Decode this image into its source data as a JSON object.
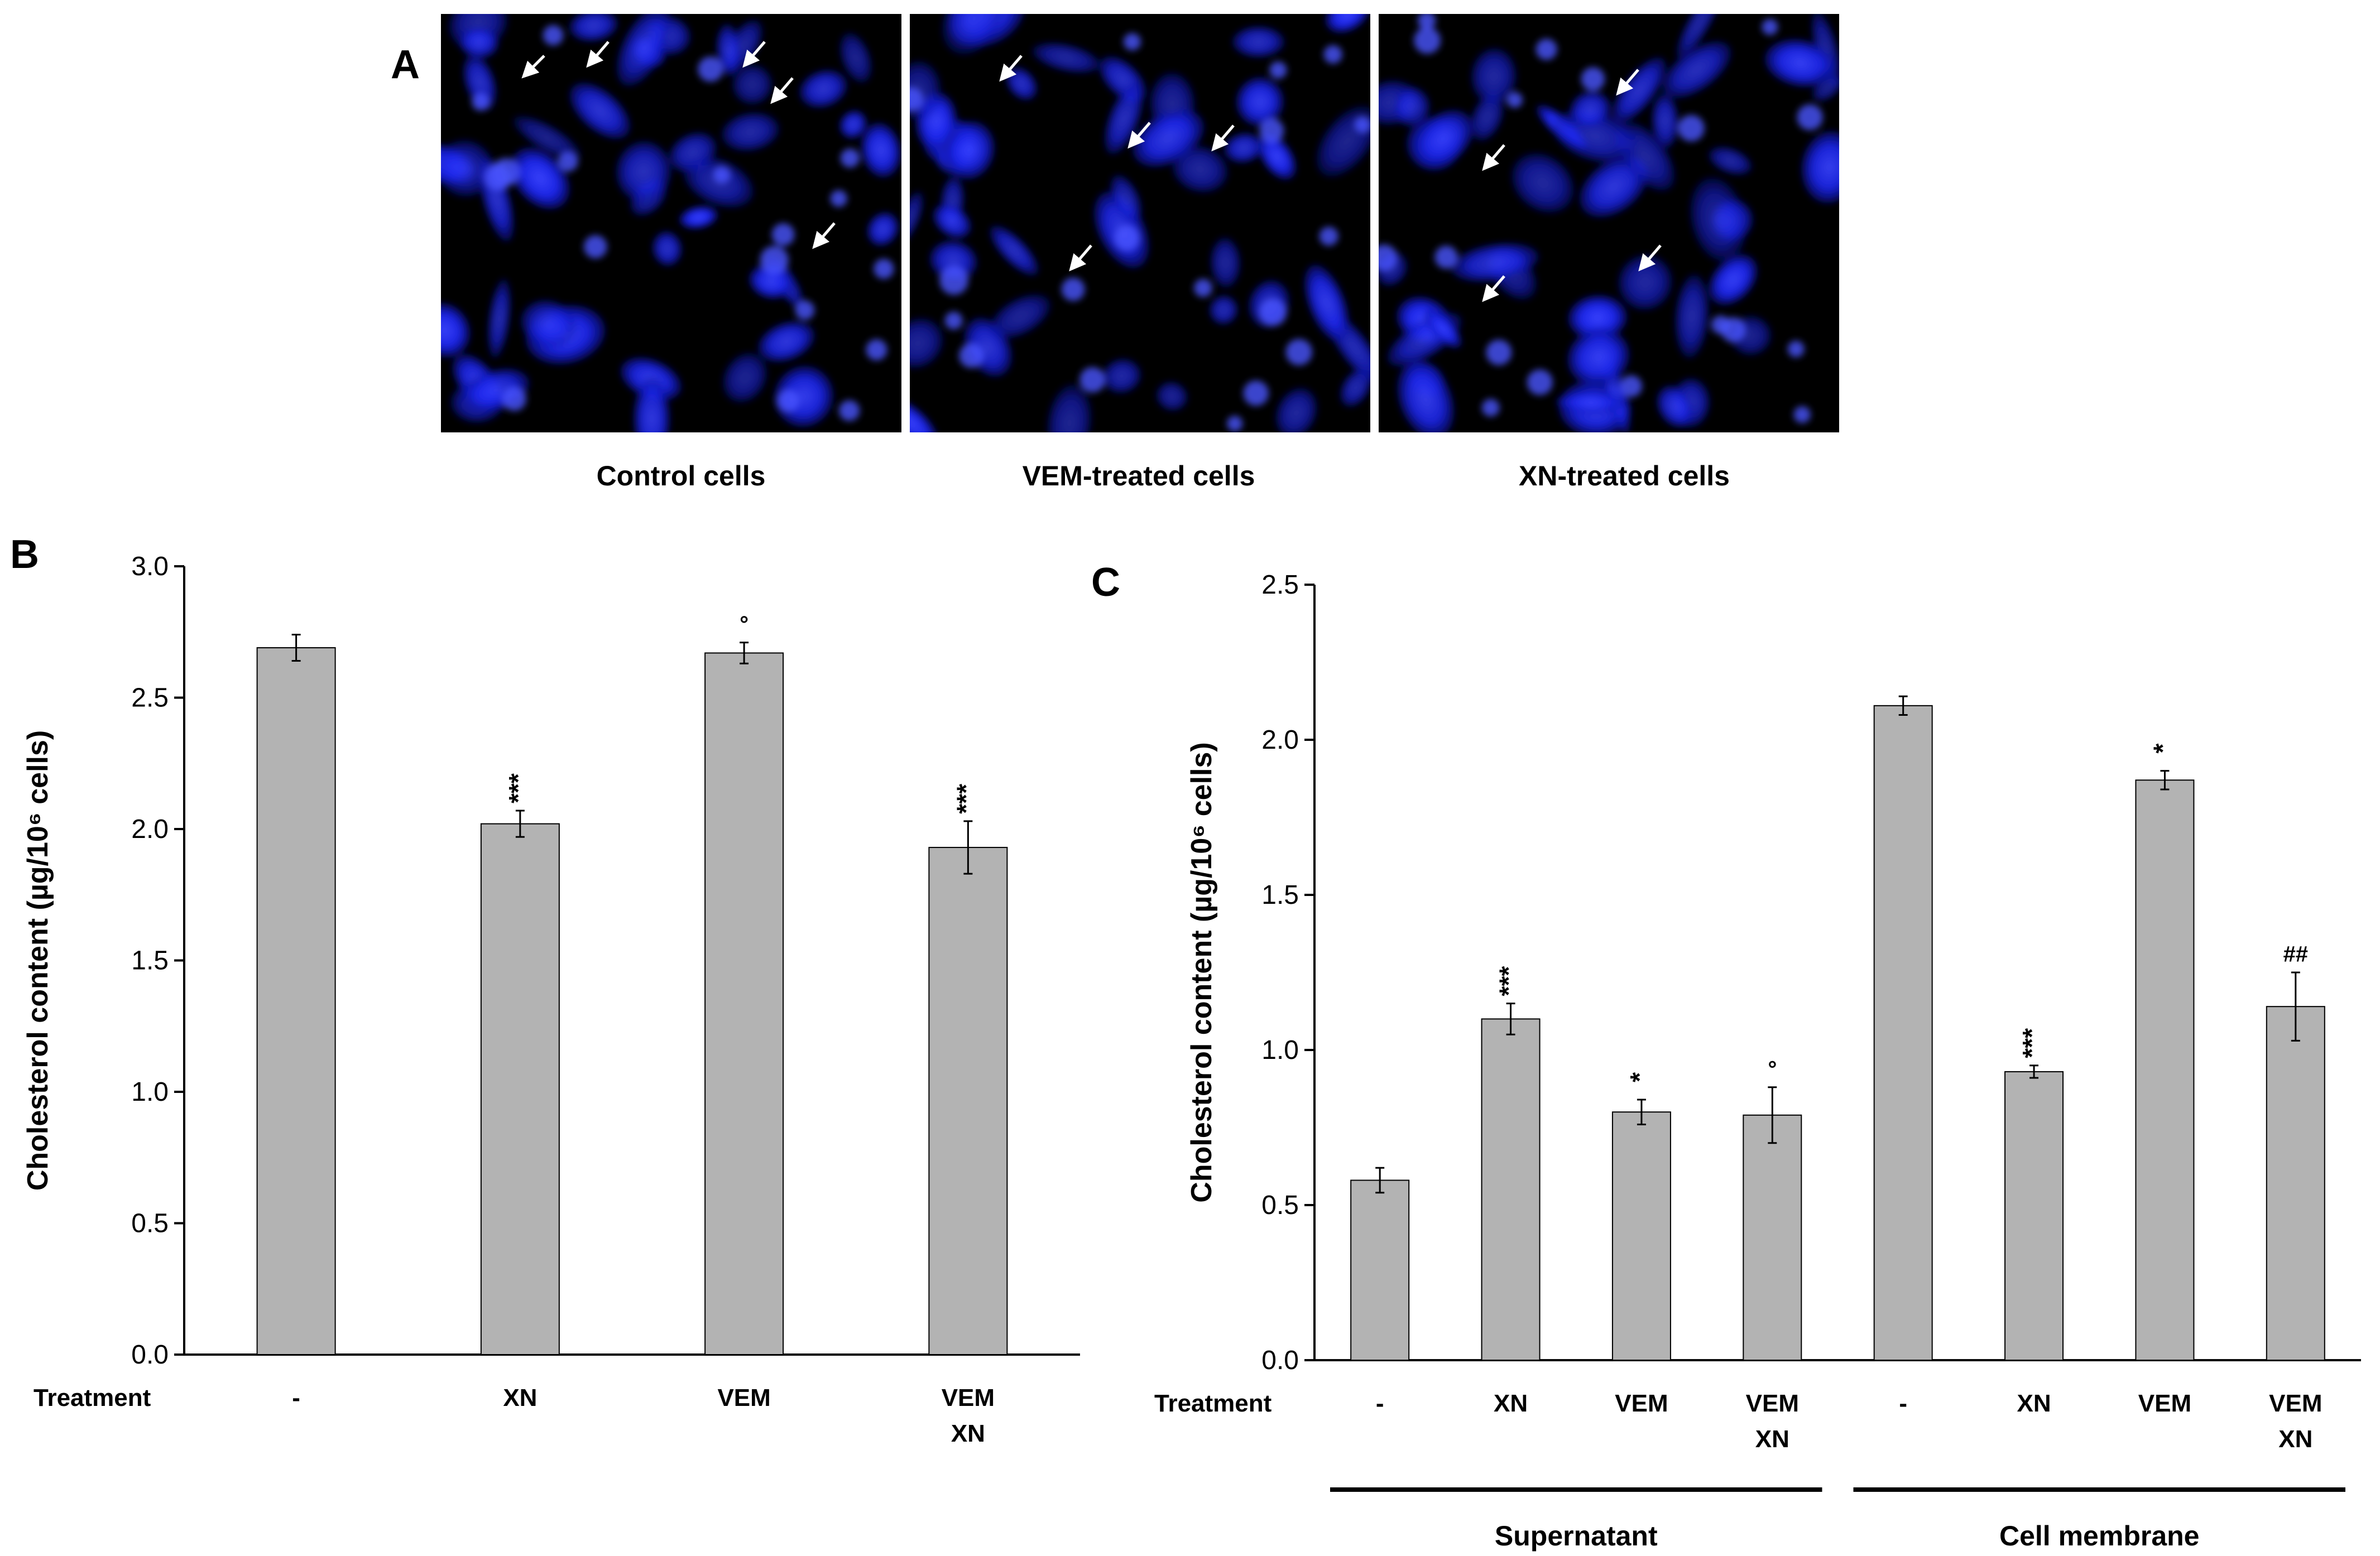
{
  "panel_a": {
    "letter": "A",
    "panels": [
      {
        "caption": "Control cells"
      },
      {
        "caption": "VEM-treated cells"
      },
      {
        "caption": "XN-treated cells"
      }
    ],
    "fluorescence_color": "#1f2bff"
  },
  "chart_data": [
    {
      "type": "bar",
      "panel": "B",
      "ylabel": "Cholesterol content (µg/10⁶ cells)",
      "row_label": "Treatment",
      "categories": [
        "-",
        "XN",
        "VEM",
        "VEM\nXN"
      ],
      "values": [
        2.69,
        2.02,
        2.67,
        1.93
      ],
      "errors": [
        0.05,
        0.05,
        0.04,
        0.1
      ],
      "annotations": [
        "",
        "***",
        "°",
        "***"
      ],
      "ylim": [
        0,
        3.0
      ],
      "yticks": [
        "0.0",
        "0.5",
        "1.0",
        "1.5",
        "2.0",
        "2.5",
        "3.0"
      ],
      "bar_color": "#b3b3b3",
      "grid": false
    },
    {
      "type": "bar",
      "panel": "C",
      "ylabel": "Cholesterol content (µg/10⁶ cells)",
      "row_label": "Treatment",
      "categories": [
        "-",
        "XN",
        "VEM",
        "VEM\nXN",
        "-",
        "XN",
        "VEM",
        "VEM\nXN"
      ],
      "values": [
        0.58,
        1.1,
        0.8,
        0.79,
        2.11,
        0.93,
        1.87,
        1.14
      ],
      "errors": [
        0.04,
        0.05,
        0.04,
        0.09,
        0.03,
        0.02,
        0.03,
        0.11
      ],
      "annotations": [
        "",
        "***",
        "*",
        "°",
        "",
        "***",
        "*",
        "##"
      ],
      "groups": [
        {
          "label": "Supernatant",
          "indices": [
            0,
            1,
            2,
            3
          ]
        },
        {
          "label": "Cell membrane",
          "indices": [
            4,
            5,
            6,
            7
          ]
        }
      ],
      "ylim": [
        0,
        2.5
      ],
      "yticks": [
        "0.0",
        "0.5",
        "1.0",
        "1.5",
        "2.0",
        "2.5"
      ],
      "bar_color": "#b3b3b3",
      "grid": false
    }
  ]
}
